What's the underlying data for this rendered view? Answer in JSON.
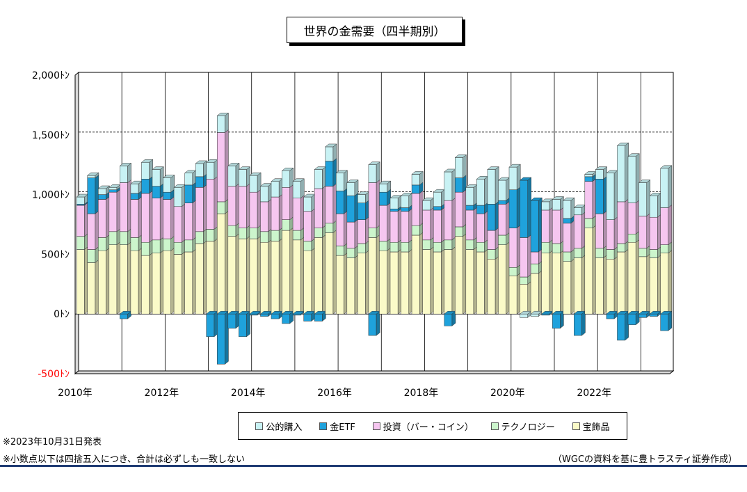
{
  "title": "世界の金需要（四半期別）",
  "notes": {
    "release": "※2023年10月31日発表",
    "rounding": "※小数点以下は四捨五入につき、合計は必ずしも一致しない",
    "source": "（WGCの資料を基に豊トラスティ証券作成）"
  },
  "colors": {
    "jewelry": "#fafac8",
    "technology": "#ccf5cc",
    "investment": "#f6c6f0",
    "etf": "#1fa2dc",
    "official": "#c8f2f4"
  },
  "chart_data": {
    "type": "bar",
    "stacked": true,
    "ylim": [
      -500,
      2000
    ],
    "y_ticks": [
      -500,
      0,
      500,
      1000,
      1500,
      2000
    ],
    "y_tick_labels": [
      "-500ﾄﾝ",
      "0ﾄﾝ",
      "500ﾄﾝ",
      "1,000ﾄﾝ",
      "1,500ﾄﾝ",
      "2,000ﾄﾝ"
    ],
    "x_tick_labels": [
      "2010年",
      "",
      "2012年",
      "",
      "2014年",
      "",
      "2016年",
      "",
      "2018年",
      "",
      "2020年",
      "",
      "2022年",
      ""
    ],
    "legend_position": "bottom",
    "categories": [
      "2010Q1",
      "2010Q2",
      "2010Q3",
      "2010Q4",
      "2011Q1",
      "2011Q2",
      "2011Q3",
      "2011Q4",
      "2012Q1",
      "2012Q2",
      "2012Q3",
      "2012Q4",
      "2013Q1",
      "2013Q2",
      "2013Q3",
      "2013Q4",
      "2014Q1",
      "2014Q2",
      "2014Q3",
      "2014Q4",
      "2015Q1",
      "2015Q2",
      "2015Q3",
      "2015Q4",
      "2016Q1",
      "2016Q2",
      "2016Q3",
      "2016Q4",
      "2017Q1",
      "2017Q2",
      "2017Q3",
      "2017Q4",
      "2018Q1",
      "2018Q2",
      "2018Q3",
      "2018Q4",
      "2019Q1",
      "2019Q2",
      "2019Q3",
      "2019Q4",
      "2020Q1",
      "2020Q2",
      "2020Q3",
      "2020Q4",
      "2021Q1",
      "2021Q2",
      "2021Q3",
      "2021Q4",
      "2022Q1",
      "2022Q2",
      "2022Q3",
      "2022Q4",
      "2023Q1",
      "2023Q2",
      "2023Q3"
    ],
    "series": [
      {
        "name": "宝飾品",
        "color_key": "jewelry",
        "values": [
          540,
          430,
          530,
          580,
          580,
          530,
          490,
          510,
          530,
          500,
          520,
          590,
          610,
          840,
          650,
          630,
          630,
          600,
          610,
          700,
          620,
          530,
          640,
          680,
          490,
          470,
          510,
          640,
          530,
          520,
          520,
          660,
          540,
          520,
          540,
          650,
          540,
          520,
          460,
          580,
          320,
          250,
          340,
          510,
          510,
          440,
          470,
          720,
          470,
          460,
          520,
          600,
          480,
          470,
          510
        ]
      },
      {
        "name": "テクノロジー",
        "color_key": "technology",
        "values": [
          110,
          110,
          110,
          110,
          110,
          110,
          110,
          110,
          100,
          100,
          100,
          100,
          100,
          100,
          90,
          90,
          90,
          90,
          90,
          90,
          80,
          80,
          80,
          80,
          80,
          80,
          80,
          80,
          80,
          80,
          80,
          80,
          80,
          80,
          80,
          80,
          80,
          80,
          80,
          80,
          70,
          60,
          80,
          90,
          80,
          80,
          80,
          80,
          80,
          80,
          70,
          70,
          70,
          70,
          70
        ]
      },
      {
        "name": "投資（バー・コイン）",
        "color_key": "investment",
        "values": [
          260,
          300,
          320,
          330,
          410,
          320,
          410,
          350,
          330,
          300,
          310,
          370,
          420,
          580,
          330,
          350,
          300,
          250,
          280,
          270,
          270,
          250,
          330,
          310,
          270,
          220,
          200,
          380,
          300,
          260,
          260,
          270,
          250,
          270,
          330,
          290,
          250,
          240,
          160,
          260,
          330,
          330,
          100,
          270,
          280,
          240,
          280,
          310,
          290,
          250,
          350,
          260,
          270,
          270,
          310
        ]
      },
      {
        "name": "金ETF",
        "color_key": "etf",
        "values": [
          10,
          300,
          40,
          20,
          -40,
          50,
          120,
          100,
          60,
          0,
          150,
          90,
          -190,
          -420,
          -120,
          -190,
          -10,
          -20,
          -40,
          -80,
          -10,
          -60,
          -60,
          210,
          190,
          220,
          140,
          -180,
          110,
          20,
          30,
          70,
          0,
          30,
          -100,
          120,
          40,
          70,
          220,
          30,
          320,
          480,
          430,
          -10,
          -120,
          40,
          -180,
          40,
          290,
          -40,
          -220,
          -90,
          -30,
          -20,
          -140
        ]
      },
      {
        "name": "公的購入",
        "color_key": "official",
        "values": [
          60,
          20,
          50,
          20,
          140,
          80,
          140,
          140,
          120,
          160,
          100,
          110,
          140,
          140,
          170,
          140,
          140,
          130,
          130,
          140,
          140,
          120,
          160,
          120,
          150,
          110,
          70,
          150,
          70,
          90,
          100,
          90,
          80,
          120,
          240,
          170,
          150,
          220,
          290,
          170,
          190,
          -30,
          -20,
          70,
          90,
          150,
          60,
          20,
          80,
          390,
          470,
          390,
          280,
          180,
          330
        ]
      }
    ]
  }
}
